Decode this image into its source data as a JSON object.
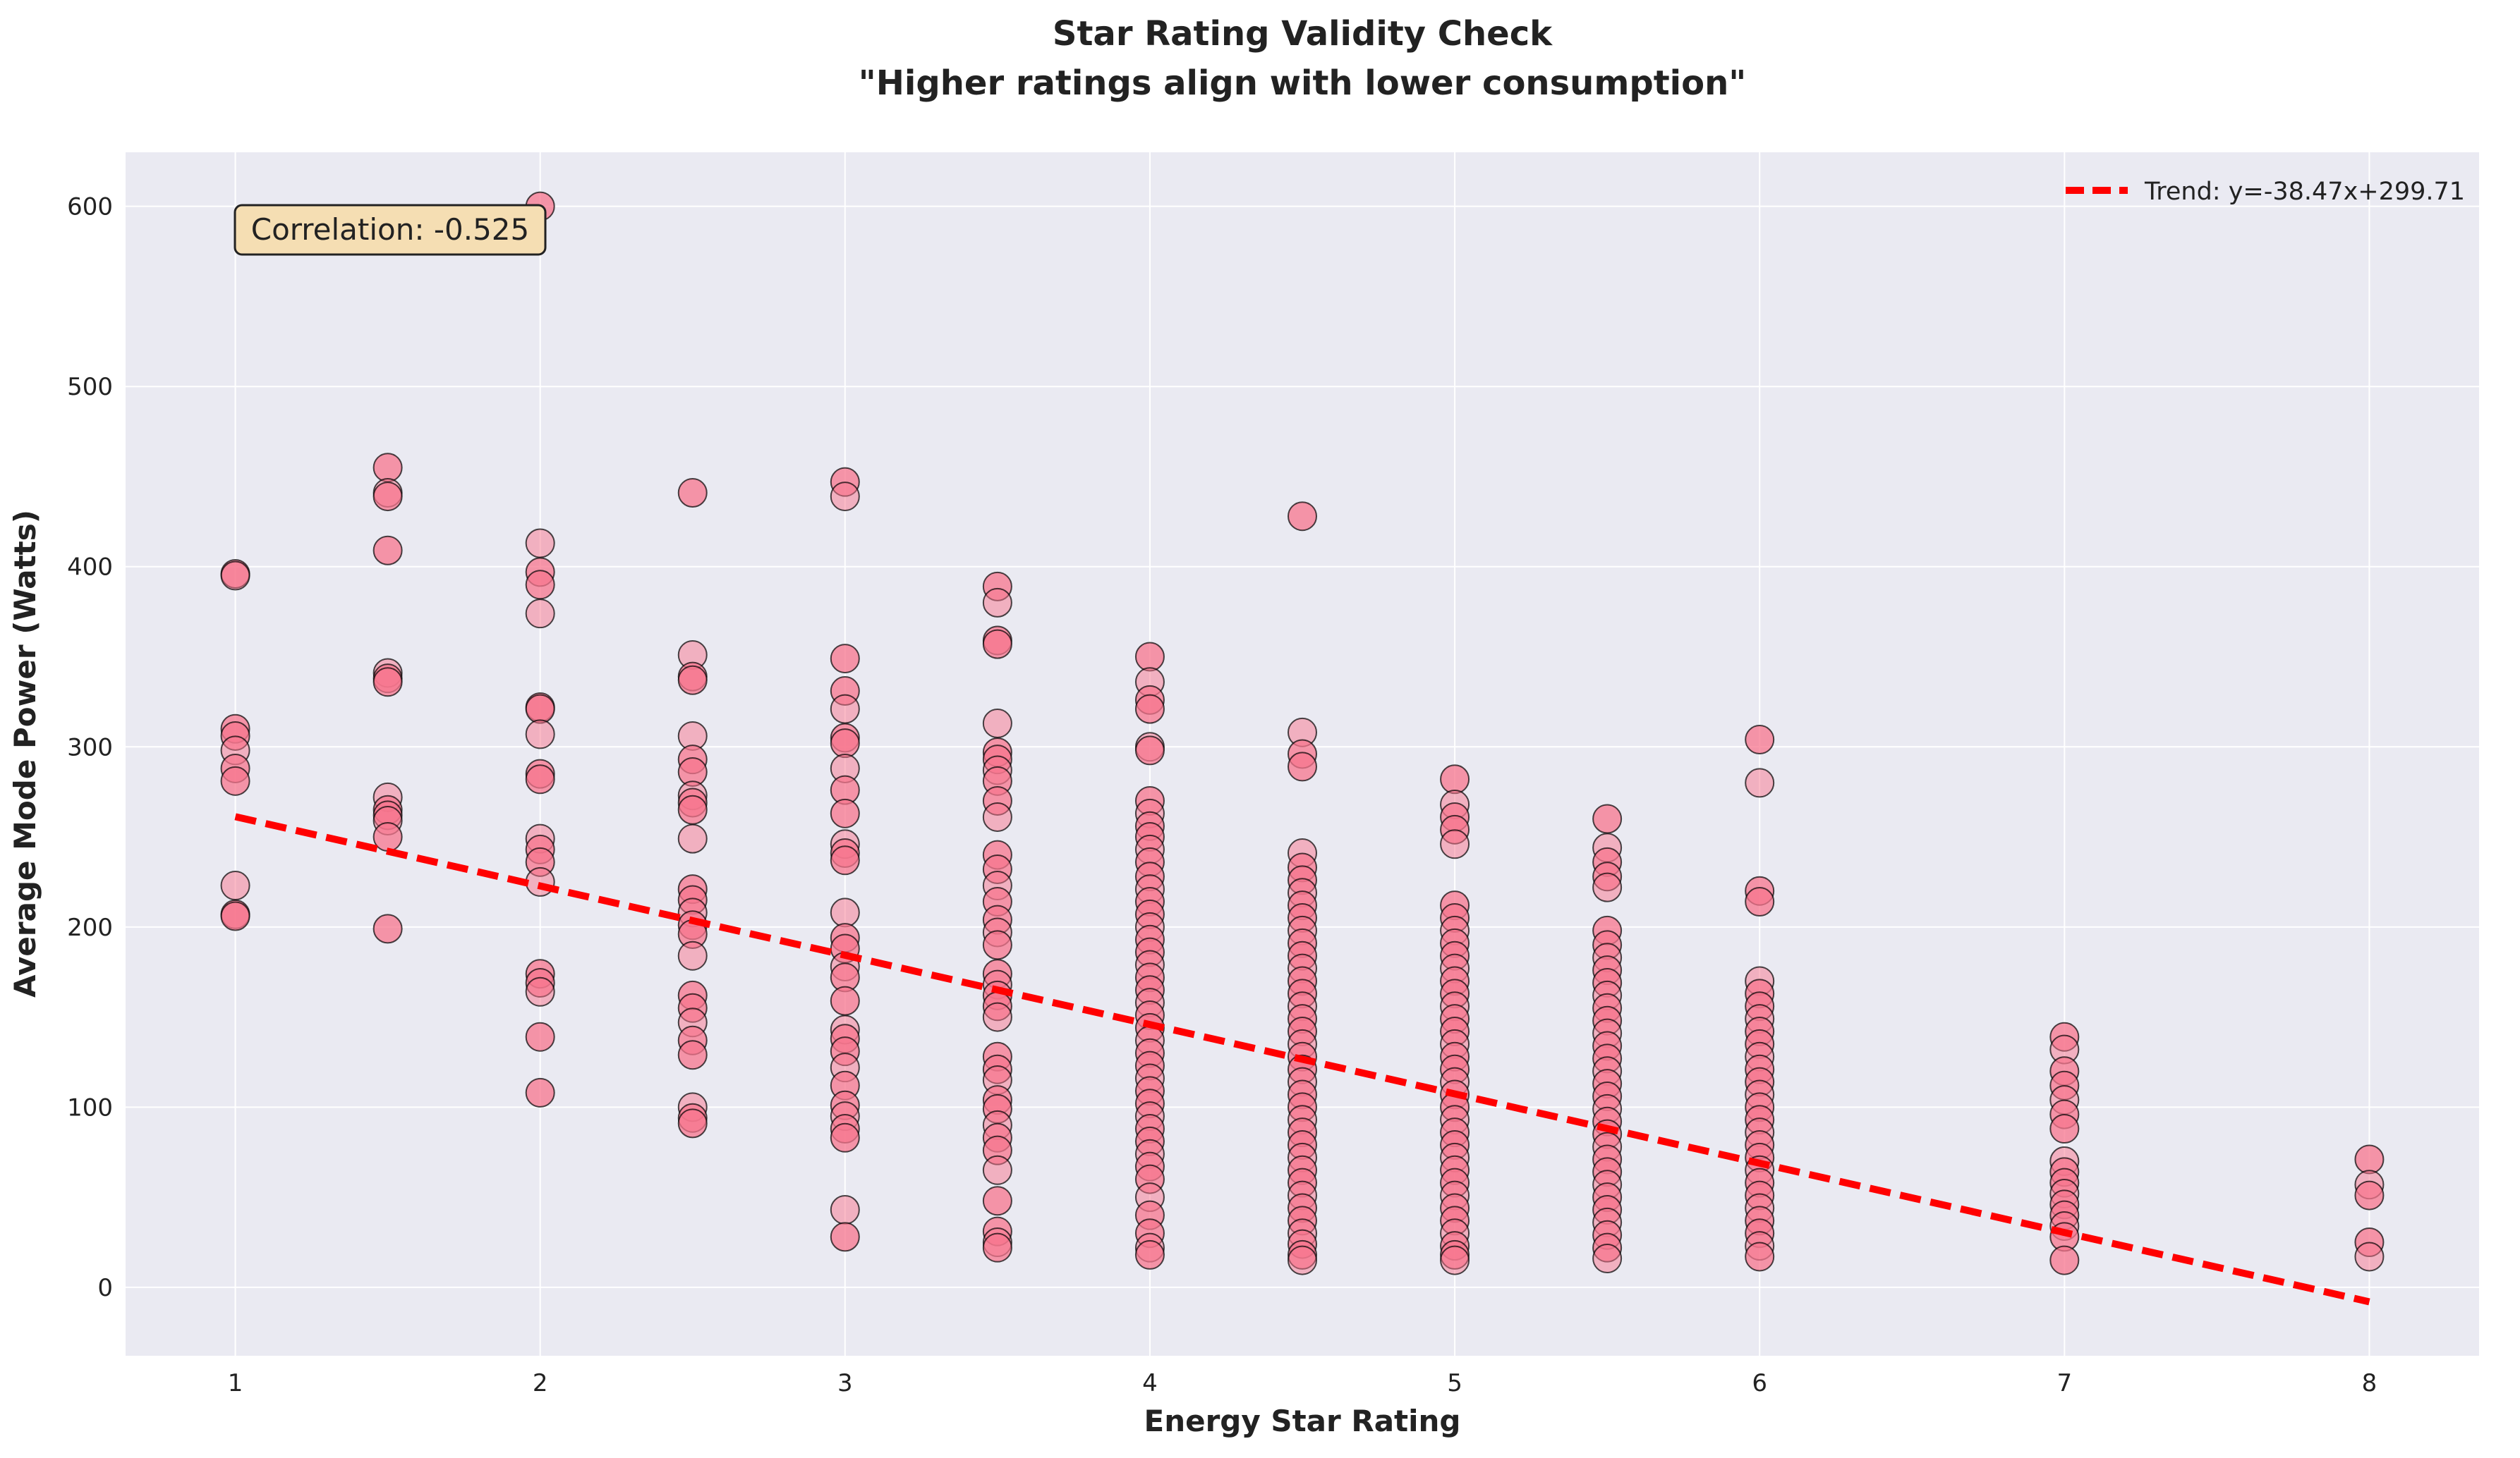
{
  "chart_data": {
    "type": "scatter",
    "title": "Star Rating Validity Check",
    "subtitle": "\"Higher ratings align with lower consumption\"",
    "xlabel": "Energy Star Rating",
    "ylabel": "Average Mode Power (Watts)",
    "xlim": [
      0.64,
      8.36
    ],
    "ylim": [
      -38,
      630
    ],
    "xticks": [
      1,
      2,
      3,
      4,
      5,
      6,
      7,
      8
    ],
    "yticks": [
      0,
      100,
      200,
      300,
      400,
      500,
      600
    ],
    "grid": true,
    "legend_position": "top-right",
    "annotation": "Correlation: -0.525",
    "colors": {
      "point": "#f7768e",
      "trend": "#ff0000",
      "plot_bg": "#eaeaf2",
      "annotation_bg": "#f5deb3"
    },
    "trend": {
      "label": "Trend: y=-38.47x+299.71",
      "slope": -38.47,
      "intercept": 299.71,
      "x_range": [
        1,
        8
      ]
    },
    "series": [
      {
        "x": 1,
        "y": [
          396,
          395,
          310,
          306,
          298,
          288,
          281,
          223,
          207,
          206
        ]
      },
      {
        "x": 1.5,
        "y": [
          455,
          441,
          439,
          409,
          341,
          338,
          336,
          272,
          265,
          262,
          259,
          250,
          199
        ]
      },
      {
        "x": 2,
        "y": [
          600,
          413,
          397,
          390,
          374,
          322,
          321,
          307,
          285,
          282,
          249,
          243,
          236,
          225,
          174,
          169,
          164,
          139,
          108
        ]
      },
      {
        "x": 2.5,
        "y": [
          441,
          351,
          339,
          337,
          306,
          293,
          286,
          273,
          269,
          265,
          249,
          221,
          215,
          208,
          201,
          196,
          184,
          162,
          155,
          147,
          137,
          129,
          100,
          94,
          91
        ]
      },
      {
        "x": 3,
        "y": [
          447,
          439,
          349,
          331,
          321,
          305,
          302,
          288,
          276,
          263,
          246,
          241,
          237,
          208,
          194,
          188,
          178,
          172,
          159,
          143,
          138,
          131,
          122,
          112,
          101,
          95,
          88,
          83,
          43,
          28
        ]
      },
      {
        "x": 3.5,
        "y": [
          389,
          380,
          359,
          357,
          313,
          297,
          293,
          287,
          281,
          270,
          261,
          240,
          232,
          223,
          214,
          204,
          197,
          190,
          174,
          168,
          162,
          156,
          150,
          128,
          121,
          115,
          104,
          99,
          90,
          83,
          76,
          65,
          48,
          31,
          25,
          22
        ]
      },
      {
        "x": 4,
        "y": [
          350,
          336,
          326,
          321,
          300,
          298,
          270,
          263,
          256,
          250,
          243,
          236,
          228,
          221,
          214,
          207,
          200,
          193,
          186,
          179,
          172,
          165,
          158,
          151,
          144,
          137,
          130,
          123,
          116,
          109,
          102,
          95,
          88,
          81,
          74,
          67,
          60,
          50,
          40,
          30,
          22,
          18
        ]
      },
      {
        "x": 4.5,
        "y": [
          428,
          308,
          296,
          289,
          241,
          233,
          226,
          219,
          212,
          205,
          198,
          191,
          184,
          177,
          170,
          163,
          156,
          149,
          142,
          135,
          128,
          121,
          114,
          107,
          100,
          93,
          86,
          79,
          72,
          65,
          58,
          51,
          44,
          37,
          30,
          24,
          18,
          15
        ]
      },
      {
        "x": 5,
        "y": [
          282,
          268,
          261,
          254,
          246,
          212,
          205,
          198,
          191,
          184,
          177,
          170,
          163,
          156,
          149,
          142,
          135,
          128,
          121,
          114,
          107,
          100,
          93,
          86,
          79,
          72,
          65,
          58,
          51,
          44,
          37,
          30,
          23,
          18,
          15
        ]
      },
      {
        "x": 5.5,
        "y": [
          260,
          244,
          236,
          228,
          222,
          198,
          190,
          183,
          176,
          169,
          162,
          155,
          148,
          141,
          134,
          127,
          120,
          113,
          106,
          99,
          92,
          85,
          78,
          71,
          64,
          57,
          50,
          43,
          36,
          29,
          22,
          16
        ]
      },
      {
        "x": 6,
        "y": [
          304,
          280,
          220,
          214,
          170,
          163,
          156,
          149,
          142,
          135,
          128,
          121,
          114,
          107,
          100,
          93,
          86,
          79,
          72,
          65,
          58,
          51,
          44,
          37,
          30,
          23,
          17
        ]
      },
      {
        "x": 7,
        "y": [
          139,
          132,
          120,
          112,
          104,
          96,
          88,
          70,
          64,
          58,
          52,
          46,
          40,
          34,
          28,
          15
        ]
      },
      {
        "x": 8,
        "y": [
          71,
          57,
          51,
          25,
          17
        ]
      }
    ]
  }
}
